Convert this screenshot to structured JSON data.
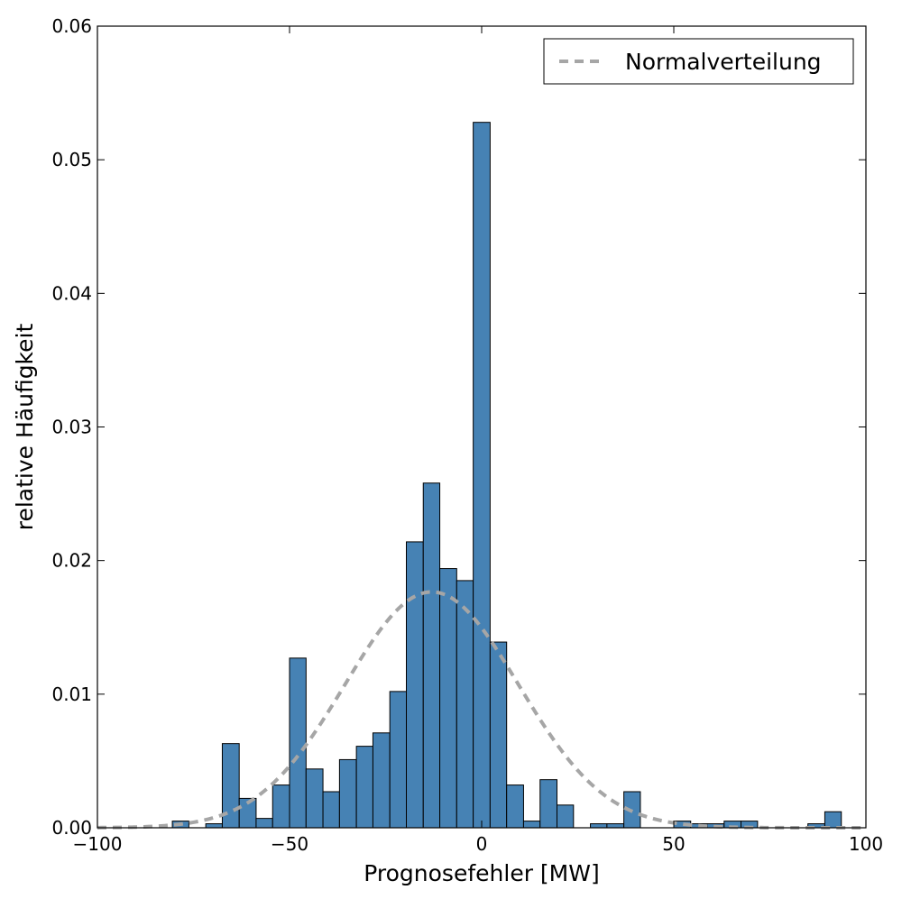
{
  "chart_data": {
    "type": "bar",
    "subtype": "histogram",
    "xlabel": "Prognosefehler [MW]",
    "ylabel": "relative Häufigkeit",
    "xlim": [
      -100,
      100
    ],
    "ylim": [
      0,
      0.06
    ],
    "xticks": [
      -100,
      -50,
      0,
      50,
      100
    ],
    "xtick_labels": [
      "−100",
      "−50",
      "0",
      "50",
      "100"
    ],
    "yticks": [
      0,
      0.01,
      0.02,
      0.03,
      0.04,
      0.05,
      0.06
    ],
    "ytick_labels": [
      "0.00",
      "0.01",
      "0.02",
      "0.03",
      "0.04",
      "0.05",
      "0.06"
    ],
    "grid": false,
    "bar_color": "#4682b4",
    "bin_width": 4.36,
    "bins": [
      {
        "x0": -80.5,
        "x1": -76.2,
        "value": 0.0005
      },
      {
        "x0": -71.8,
        "x1": -67.5,
        "value": 0.0003
      },
      {
        "x0": -67.5,
        "x1": -63.1,
        "value": 0.0063
      },
      {
        "x0": -63.1,
        "x1": -58.7,
        "value": 0.0022
      },
      {
        "x0": -58.7,
        "x1": -54.4,
        "value": 0.0007
      },
      {
        "x0": -54.4,
        "x1": -50.0,
        "value": 0.0032
      },
      {
        "x0": -50.0,
        "x1": -45.7,
        "value": 0.0127
      },
      {
        "x0": -45.7,
        "x1": -41.3,
        "value": 0.0044
      },
      {
        "x0": -41.3,
        "x1": -37.0,
        "value": 0.0027
      },
      {
        "x0": -37.0,
        "x1": -32.6,
        "value": 0.0051
      },
      {
        "x0": -32.6,
        "x1": -28.3,
        "value": 0.0061
      },
      {
        "x0": -28.3,
        "x1": -23.9,
        "value": 0.0071
      },
      {
        "x0": -23.9,
        "x1": -19.6,
        "value": 0.0102
      },
      {
        "x0": -19.6,
        "x1": -15.2,
        "value": 0.0214
      },
      {
        "x0": -15.2,
        "x1": -10.9,
        "value": 0.0258
      },
      {
        "x0": -10.9,
        "x1": -6.5,
        "value": 0.0194
      },
      {
        "x0": -6.5,
        "x1": -2.2,
        "value": 0.0185
      },
      {
        "x0": -2.2,
        "x1": 2.2,
        "value": 0.0528
      },
      {
        "x0": 2.2,
        "x1": 6.5,
        "value": 0.0139
      },
      {
        "x0": 6.5,
        "x1": 10.9,
        "value": 0.0032
      },
      {
        "x0": 10.9,
        "x1": 15.2,
        "value": 0.0005
      },
      {
        "x0": 15.2,
        "x1": 19.6,
        "value": 0.0036
      },
      {
        "x0": 19.6,
        "x1": 23.9,
        "value": 0.0017
      },
      {
        "x0": 28.3,
        "x1": 32.6,
        "value": 0.0003
      },
      {
        "x0": 32.6,
        "x1": 37.0,
        "value": 0.0003
      },
      {
        "x0": 37.0,
        "x1": 41.3,
        "value": 0.0027
      },
      {
        "x0": 50.0,
        "x1": 54.4,
        "value": 0.0005
      },
      {
        "x0": 54.4,
        "x1": 58.7,
        "value": 0.0003
      },
      {
        "x0": 58.7,
        "x1": 63.1,
        "value": 0.0003
      },
      {
        "x0": 63.1,
        "x1": 67.5,
        "value": 0.0005
      },
      {
        "x0": 67.5,
        "x1": 71.8,
        "value": 0.0005
      },
      {
        "x0": 84.9,
        "x1": 89.3,
        "value": 0.0003
      },
      {
        "x0": 89.3,
        "x1": 93.6,
        "value": 0.0012
      }
    ],
    "series": [
      {
        "name": "Normalverteilung",
        "type": "line",
        "style": "dashed",
        "color": "#a6a6a6",
        "mean": -13.0,
        "std": 22.6
      }
    ],
    "legend": {
      "position": "top-right",
      "entries": [
        "Normalverteilung"
      ]
    }
  }
}
